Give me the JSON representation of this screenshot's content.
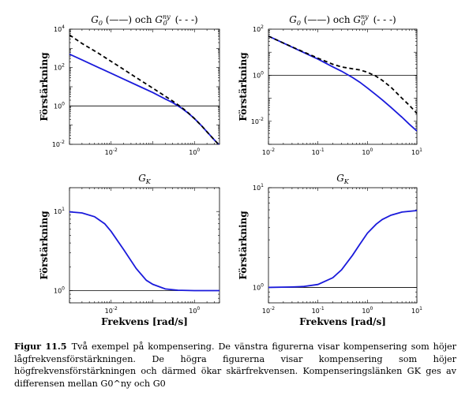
{
  "chart_data": [
    {
      "type": "line",
      "title": "G0 (——) och G0^ny (- - -)",
      "ylabel": "Förstärkning",
      "xlabel": "",
      "xscale": "log",
      "yscale": "log",
      "xlim": [
        0.001,
        4
      ],
      "ylim": [
        0.01,
        10000
      ],
      "xticks": [
        0.01,
        1
      ],
      "yticks": [
        0.01,
        1,
        100,
        10000
      ],
      "hline": 1,
      "series": [
        {
          "style": "solid",
          "color": "#1a1adb",
          "x": [
            0.001,
            0.002,
            0.005,
            0.01,
            0.02,
            0.05,
            0.1,
            0.2,
            0.3,
            0.5,
            0.7,
            1,
            1.5,
            2,
            3,
            4
          ],
          "y": [
            500,
            250,
            100,
            50,
            25,
            10,
            5,
            2.3,
            1.5,
            0.75,
            0.43,
            0.22,
            0.09,
            0.045,
            0.017,
            0.009
          ]
        },
        {
          "style": "dashed",
          "color": "#000000",
          "x": [
            0.001,
            0.002,
            0.005,
            0.01,
            0.02,
            0.05,
            0.1,
            0.2,
            0.3,
            0.5,
            0.7,
            1,
            1.5,
            2,
            3,
            4
          ],
          "y": [
            5000,
            1800,
            550,
            210,
            80,
            22,
            8.5,
            3.2,
            1.8,
            0.82,
            0.45,
            0.22,
            0.09,
            0.045,
            0.017,
            0.009
          ]
        }
      ]
    },
    {
      "type": "line",
      "title": "G0 (——) och G0^ny (- - -)",
      "ylabel": "Förstärkning",
      "xlabel": "",
      "xscale": "log",
      "yscale": "log",
      "xlim": [
        0.01,
        10
      ],
      "ylim": [
        0.001,
        100
      ],
      "xticks": [
        0.01,
        0.1,
        1,
        10
      ],
      "yticks": [
        0.01,
        1,
        100
      ],
      "hline": 1,
      "series": [
        {
          "style": "solid",
          "color": "#1a1adb",
          "x": [
            0.01,
            0.02,
            0.05,
            0.1,
            0.2,
            0.3,
            0.5,
            0.7,
            1,
            1.5,
            2,
            3,
            5,
            7,
            10
          ],
          "y": [
            50,
            25,
            10,
            5,
            2.3,
            1.5,
            0.8,
            0.5,
            0.28,
            0.14,
            0.085,
            0.04,
            0.015,
            0.0075,
            0.0038
          ]
        },
        {
          "style": "dashed",
          "color": "#000000",
          "x": [
            0.01,
            0.02,
            0.05,
            0.1,
            0.2,
            0.3,
            0.5,
            0.7,
            1,
            1.5,
            2,
            3,
            5,
            7,
            10
          ],
          "y": [
            50,
            25,
            10.5,
            5.5,
            3,
            2.3,
            1.9,
            1.7,
            1.35,
            0.9,
            0.6,
            0.3,
            0.1,
            0.05,
            0.022
          ]
        }
      ]
    },
    {
      "type": "line",
      "title": "GK",
      "ylabel": "Förstärkning",
      "xlabel": "Frekvens [rad/s]",
      "xscale": "log",
      "yscale": "log",
      "xlim": [
        0.001,
        4
      ],
      "ylim": [
        0.7,
        20
      ],
      "xticks": [
        0.01,
        1
      ],
      "yticks": [
        1,
        10
      ],
      "hline": 1,
      "series": [
        {
          "style": "solid",
          "color": "#1a1adb",
          "x": [
            0.001,
            0.002,
            0.004,
            0.007,
            0.01,
            0.02,
            0.04,
            0.07,
            0.1,
            0.2,
            0.4,
            1,
            4
          ],
          "y": [
            9.9,
            9.6,
            8.6,
            7.0,
            5.6,
            3.3,
            1.9,
            1.35,
            1.2,
            1.05,
            1.01,
            1.0,
            1.0
          ]
        }
      ]
    },
    {
      "type": "line",
      "title": "GK",
      "ylabel": "Förstärkning",
      "xlabel": "Frekvens [rad/s]",
      "xscale": "log",
      "yscale": "log",
      "xlim": [
        0.01,
        10
      ],
      "ylim": [
        0.7,
        10
      ],
      "xticks": [
        0.01,
        0.1,
        1,
        10
      ],
      "yticks": [
        1,
        10
      ],
      "hline": 1,
      "series": [
        {
          "style": "solid",
          "color": "#1a1adb",
          "x": [
            0.01,
            0.03,
            0.05,
            0.1,
            0.2,
            0.3,
            0.5,
            0.7,
            1,
            1.5,
            2,
            3,
            5,
            10
          ],
          "y": [
            1.0,
            1.01,
            1.02,
            1.07,
            1.25,
            1.5,
            2.1,
            2.7,
            3.5,
            4.3,
            4.8,
            5.3,
            5.7,
            5.9
          ]
        }
      ]
    }
  ],
  "caption": {
    "label": "Figur 11.5",
    "text": "Två exempel på kompensering. De vänstra figurerna visar kompensering som höjer lågfrekvensförstärkningen. De högra figurerna visar kompensering som höjer högfrekvensförstärkningen och därmed ökar skärfrekvensen. Kompenseringslänken GK ges av differensen mellan G0^ny och G0"
  }
}
